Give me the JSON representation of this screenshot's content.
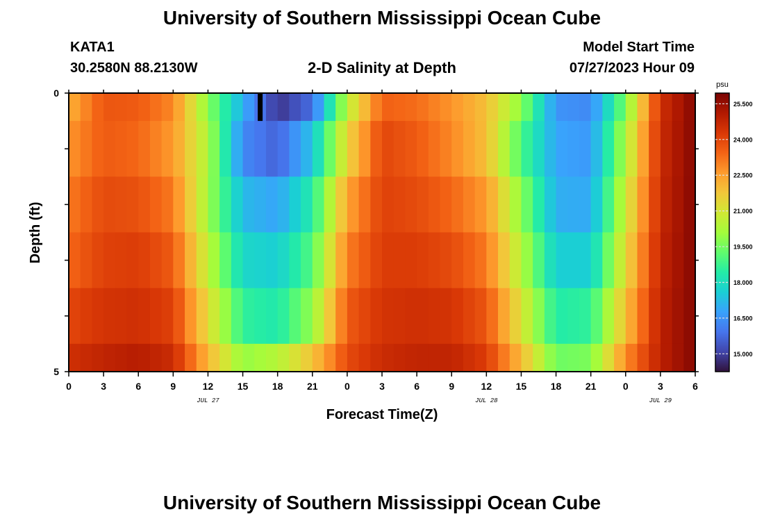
{
  "page": {
    "title": "University of Southern Mississippi Ocean Cube",
    "footer_title": "University of Southern Mississippi Ocean Cube",
    "station": "KATA1",
    "coords": "30.2580N  88.2130W",
    "subtitle": "2-D Salinity at Depth",
    "model_label": "Model Start Time",
    "model_time": "07/27/2023 Hour 09"
  },
  "chart_data": {
    "type": "heatmap",
    "title": "2-D Salinity at Depth",
    "xlabel": "Forecast Time(Z)",
    "ylabel": "Depth (ft)",
    "x_start_hour": 0,
    "x_end_hour": 54,
    "x_ticks": [
      {
        "hour": 0,
        "label": "0"
      },
      {
        "hour": 3,
        "label": "3"
      },
      {
        "hour": 6,
        "label": "6"
      },
      {
        "hour": 9,
        "label": "9"
      },
      {
        "hour": 12,
        "label": "12"
      },
      {
        "hour": 15,
        "label": "15"
      },
      {
        "hour": 18,
        "label": "18"
      },
      {
        "hour": 21,
        "label": "21"
      },
      {
        "hour": 24,
        "label": "0"
      },
      {
        "hour": 27,
        "label": "3"
      },
      {
        "hour": 30,
        "label": "6"
      },
      {
        "hour": 33,
        "label": "9"
      },
      {
        "hour": 36,
        "label": "12"
      },
      {
        "hour": 39,
        "label": "15"
      },
      {
        "hour": 42,
        "label": "18"
      },
      {
        "hour": 45,
        "label": "21"
      },
      {
        "hour": 48,
        "label": "0"
      },
      {
        "hour": 51,
        "label": "3"
      },
      {
        "hour": 54,
        "label": "6"
      }
    ],
    "date_labels": [
      {
        "hour": 12,
        "label": "JUL 27"
      },
      {
        "hour": 36,
        "label": "JUL 28"
      },
      {
        "hour": 51,
        "label": "JUL 29"
      }
    ],
    "y_range": [
      0,
      5
    ],
    "y_ticks": [
      {
        "value": 0,
        "label": "0"
      },
      {
        "value": 5,
        "label": "5"
      }
    ],
    "depth_bands": [
      {
        "top": 0.0,
        "bottom": 0.5
      },
      {
        "top": 0.5,
        "bottom": 1.5
      },
      {
        "top": 1.5,
        "bottom": 2.5
      },
      {
        "top": 2.5,
        "bottom": 3.5
      },
      {
        "top": 3.5,
        "bottom": 4.5
      },
      {
        "top": 4.5,
        "bottom": 5.0
      }
    ],
    "value_hours": [
      0,
      3,
      6,
      9,
      12,
      15,
      18,
      21,
      24,
      27,
      30,
      33,
      36,
      39,
      42,
      45,
      48,
      51,
      54
    ],
    "values": [
      [
        22.2,
        23.7,
        23.6,
        22.9,
        19.8,
        17.0,
        14.8,
        15.8,
        20.5,
        23.5,
        23.3,
        22.7,
        21.9,
        19.8,
        16.5,
        16.3,
        19.6,
        24.5,
        25.8
      ],
      [
        22.7,
        23.6,
        23.4,
        22.6,
        20.3,
        16.3,
        15.6,
        17.4,
        21.4,
        24.0,
        23.6,
        22.9,
        21.9,
        19.0,
        16.8,
        16.6,
        20.3,
        24.6,
        25.8
      ],
      [
        23.1,
        23.9,
        23.8,
        23.1,
        20.1,
        17.2,
        16.8,
        18.4,
        22.4,
        24.1,
        23.9,
        23.4,
        22.6,
        19.8,
        17.0,
        16.9,
        20.8,
        24.7,
        25.8
      ],
      [
        23.4,
        24.1,
        24.2,
        23.6,
        20.6,
        17.8,
        17.6,
        19.1,
        23.0,
        24.2,
        24.2,
        23.9,
        23.1,
        20.4,
        17.6,
        17.6,
        21.3,
        24.8,
        25.8
      ],
      [
        24.0,
        24.4,
        24.5,
        24.1,
        21.3,
        18.6,
        18.3,
        19.9,
        23.6,
        24.4,
        24.5,
        24.4,
        23.7,
        21.1,
        18.4,
        18.6,
        21.9,
        24.9,
        25.8
      ],
      [
        24.5,
        24.8,
        25.0,
        24.6,
        22.1,
        19.9,
        20.4,
        21.8,
        23.9,
        24.6,
        24.8,
        24.8,
        24.2,
        22.0,
        19.4,
        19.6,
        22.8,
        24.9,
        25.8
      ]
    ],
    "marker": {
      "hour": 16.5,
      "depth_top": 0.0,
      "depth_bottom": 0.5
    },
    "colorbar": {
      "unit": "psu",
      "min": 14.25,
      "max": 25.95,
      "tick_values": [
        15.0,
        16.5,
        18.0,
        19.5,
        21.0,
        22.5,
        24.0,
        25.5
      ],
      "tick_labels": [
        "15.000",
        "16.500",
        "18.000",
        "19.500",
        "21.000",
        "22.500",
        "24.000",
        "25.500"
      ],
      "colors": [
        "#30123b",
        "#4145ab",
        "#4675ed",
        "#39a2fc",
        "#1bcfd4",
        "#24eca6",
        "#61fc6c",
        "#a4fc3b",
        "#d1e834",
        "#f3c63a",
        "#fe9b2d",
        "#f36315",
        "#d93806",
        "#b11901",
        "#7a0403"
      ]
    }
  }
}
